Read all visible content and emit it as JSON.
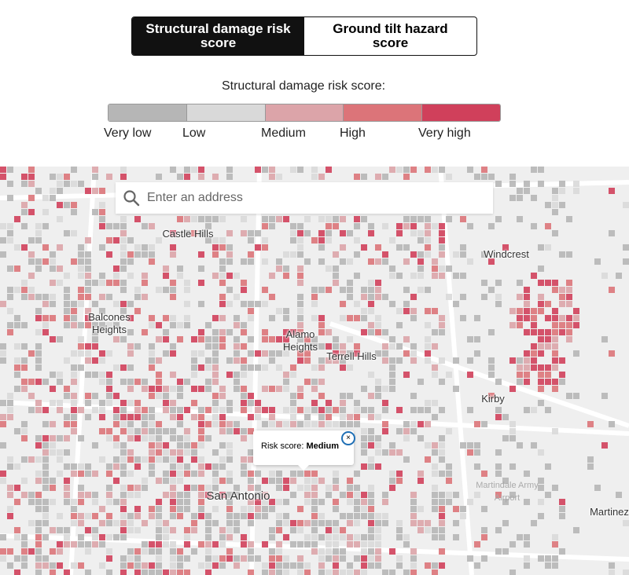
{
  "toggle": {
    "options": [
      "Structural damage risk score",
      "Ground tilt hazard score"
    ],
    "active": 0
  },
  "legend": {
    "title": "Structural damage risk score:",
    "items": [
      {
        "label": "Very low",
        "color": "#b6b6b6"
      },
      {
        "label": "Low",
        "color": "#d9d9d9"
      },
      {
        "label": "Medium",
        "color": "#dca4a9"
      },
      {
        "label": "High",
        "color": "#dc7479"
      },
      {
        "label": "Very high",
        "color": "#d0405b"
      }
    ]
  },
  "search": {
    "placeholder": "Enter an address"
  },
  "map": {
    "places": [
      "Castle Hills",
      "Windcrest",
      "Balcones Heights",
      "Alamo Heights",
      "Terrell Hills",
      "Kirby",
      "San Antonio",
      "Martindale Army Airport",
      "Martinez"
    ],
    "popup": {
      "label": "Risk score:",
      "value": "Medium"
    }
  }
}
